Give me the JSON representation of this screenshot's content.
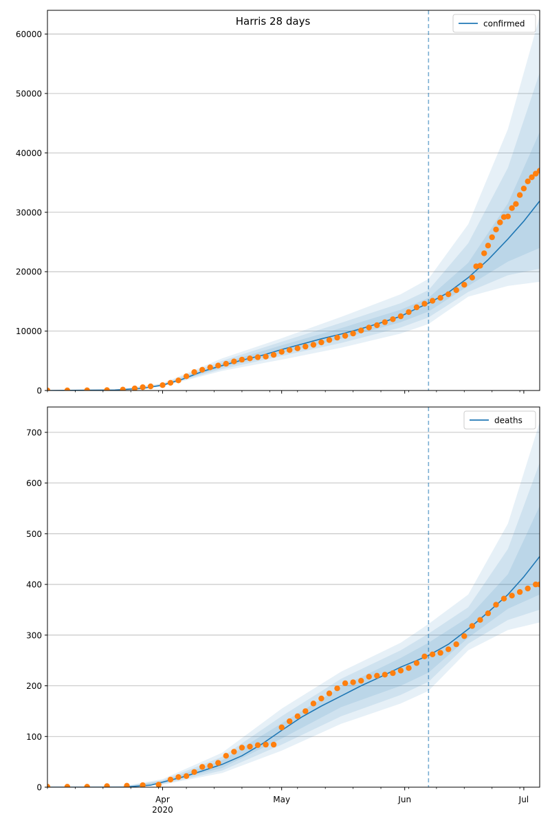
{
  "figure": {
    "title": "Harris 28 days"
  },
  "colors": {
    "model_line": "#1f77b4",
    "band_fill": "#1f77b4",
    "observed_points": "#ff7f0e",
    "cutoff_line": "#1f77b4",
    "grid": "#b0b0b0"
  },
  "chart_data": [
    {
      "type": "line",
      "title": "Harris 28 days",
      "xlabel": "",
      "ylabel": "",
      "x_axis": {
        "type": "date",
        "range": [
          "2020-03-03",
          "2020-07-05"
        ],
        "tick_labels": [
          "Apr\n2020",
          "May",
          "Jun",
          "Jul"
        ],
        "ticks": [
          "2020-04-01",
          "2020-05-01",
          "2020-06-01",
          "2020-07-01"
        ]
      },
      "ylim": [
        0,
        64000
      ],
      "yticks": [
        0,
        10000,
        20000,
        30000,
        40000,
        50000,
        60000
      ],
      "grid": "horizontal",
      "legend": {
        "placement": "top-right",
        "entries": [
          "confirmed"
        ]
      },
      "cutoff_date": "2020-06-07",
      "series": [
        {
          "name": "confirmed",
          "kind": "model_median",
          "x": [
            "2020-03-03",
            "2020-03-20",
            "2020-03-27",
            "2020-04-01",
            "2020-04-06",
            "2020-04-11",
            "2020-04-16",
            "2020-04-21",
            "2020-04-26",
            "2020-05-01",
            "2020-05-06",
            "2020-05-11",
            "2020-05-16",
            "2020-05-21",
            "2020-05-26",
            "2020-05-31",
            "2020-06-04",
            "2020-06-07",
            "2020-06-12",
            "2020-06-17",
            "2020-06-22",
            "2020-06-27",
            "2020-07-01",
            "2020-07-05"
          ],
          "y": [
            0,
            80,
            350,
            900,
            1900,
            3200,
            4200,
            5100,
            5900,
            6900,
            7800,
            8700,
            9500,
            10400,
            11400,
            12500,
            13800,
            14700,
            16500,
            19000,
            22000,
            25500,
            28500,
            31900
          ]
        },
        {
          "name": "confirmed",
          "kind": "observed",
          "x": [
            "2020-03-03",
            "2020-03-08",
            "2020-03-13",
            "2020-03-18",
            "2020-03-22",
            "2020-03-25",
            "2020-03-27",
            "2020-03-29",
            "2020-04-01",
            "2020-04-03",
            "2020-04-05",
            "2020-04-07",
            "2020-04-09",
            "2020-04-11",
            "2020-04-13",
            "2020-04-15",
            "2020-04-17",
            "2020-04-19",
            "2020-04-21",
            "2020-04-23",
            "2020-04-25",
            "2020-04-27",
            "2020-04-29",
            "2020-05-01",
            "2020-05-03",
            "2020-05-05",
            "2020-05-07",
            "2020-05-09",
            "2020-05-11",
            "2020-05-13",
            "2020-05-15",
            "2020-05-17",
            "2020-05-19",
            "2020-05-21",
            "2020-05-23",
            "2020-05-25",
            "2020-05-27",
            "2020-05-29",
            "2020-05-31",
            "2020-06-02",
            "2020-06-04",
            "2020-06-06",
            "2020-06-08",
            "2020-06-10",
            "2020-06-12",
            "2020-06-14",
            "2020-06-16",
            "2020-06-18",
            "2020-06-19",
            "2020-06-20",
            "2020-06-21",
            "2020-06-22",
            "2020-06-23",
            "2020-06-24",
            "2020-06-25",
            "2020-06-26",
            "2020-06-27",
            "2020-06-28",
            "2020-06-29",
            "2020-06-30",
            "2020-07-01",
            "2020-07-02",
            "2020-07-03",
            "2020-07-04",
            "2020-07-05"
          ],
          "y": [
            10,
            20,
            30,
            60,
            150,
            350,
            550,
            700,
            900,
            1300,
            1700,
            2400,
            3100,
            3500,
            3900,
            4200,
            4500,
            4900,
            5200,
            5400,
            5600,
            5700,
            6000,
            6500,
            6800,
            7100,
            7400,
            7700,
            8100,
            8500,
            8900,
            9200,
            9600,
            10100,
            10600,
            11000,
            11500,
            12000,
            12500,
            13200,
            14000,
            14600,
            15100,
            15600,
            16200,
            16900,
            17800,
            19000,
            20900,
            21000,
            23100,
            24400,
            25800,
            27100,
            28300,
            29200,
            29300,
            30700,
            31400,
            32900,
            34000,
            35200,
            35900,
            36500,
            37000
          ]
        }
      ],
      "bands": [
        {
          "x": [
            "2020-03-03",
            "2020-03-20",
            "2020-04-01",
            "2020-04-16",
            "2020-05-01",
            "2020-05-16",
            "2020-05-31",
            "2020-06-07",
            "2020-06-17",
            "2020-06-27",
            "2020-07-05"
          ],
          "lower": [
            0,
            60,
            700,
            3300,
            5200,
            7200,
            9600,
            11200,
            15800,
            17600,
            18300
          ],
          "upper": [
            0,
            110,
            1200,
            5400,
            8800,
            12400,
            16200,
            18800,
            28000,
            44000,
            63000
          ]
        },
        {
          "x": [
            "2020-03-03",
            "2020-03-20",
            "2020-04-01",
            "2020-04-16",
            "2020-05-01",
            "2020-05-16",
            "2020-05-31",
            "2020-06-07",
            "2020-06-17",
            "2020-06-27",
            "2020-07-05"
          ],
          "lower": [
            0,
            65,
            760,
            3600,
            5800,
            8000,
            10600,
            12300,
            16600,
            19400,
            20500
          ],
          "upper": [
            0,
            100,
            1100,
            5000,
            8200,
            11400,
            14700,
            16900,
            24800,
            37500,
            53500
          ]
        },
        {
          "x": [
            "2020-03-03",
            "2020-03-20",
            "2020-04-01",
            "2020-04-16",
            "2020-05-01",
            "2020-05-16",
            "2020-05-31",
            "2020-06-07",
            "2020-06-17",
            "2020-06-27",
            "2020-07-05"
          ],
          "lower": [
            0,
            70,
            820,
            3900,
            6300,
            8700,
            11500,
            13300,
            17600,
            21700,
            24000
          ],
          "upper": [
            0,
            92,
            1000,
            4600,
            7600,
            10500,
            13600,
            15600,
            21500,
            31500,
            43500
          ]
        }
      ]
    },
    {
      "type": "line",
      "title": "",
      "xlabel": "",
      "ylabel": "",
      "x_axis": {
        "type": "date",
        "range": [
          "2020-03-03",
          "2020-07-05"
        ],
        "tick_labels": [
          "Apr\n2020",
          "May",
          "Jun",
          "Jul"
        ],
        "ticks": [
          "2020-04-01",
          "2020-05-01",
          "2020-06-01",
          "2020-07-01"
        ]
      },
      "ylim": [
        0,
        750
      ],
      "yticks": [
        0,
        100,
        200,
        300,
        400,
        500,
        600,
        700
      ],
      "grid": "horizontal",
      "legend": {
        "placement": "top-right",
        "entries": [
          "deaths"
        ]
      },
      "cutoff_date": "2020-06-07",
      "series": [
        {
          "name": "deaths",
          "kind": "model_median",
          "x": [
            "2020-03-03",
            "2020-03-22",
            "2020-03-29",
            "2020-04-01",
            "2020-04-06",
            "2020-04-11",
            "2020-04-16",
            "2020-04-21",
            "2020-04-26",
            "2020-05-01",
            "2020-05-06",
            "2020-05-11",
            "2020-05-16",
            "2020-05-21",
            "2020-05-26",
            "2020-05-31",
            "2020-06-04",
            "2020-06-07",
            "2020-06-12",
            "2020-06-17",
            "2020-06-22",
            "2020-06-27",
            "2020-07-01",
            "2020-07-05"
          ],
          "y": [
            0,
            0,
            4,
            10,
            20,
            32,
            45,
            62,
            85,
            112,
            138,
            160,
            180,
            200,
            218,
            237,
            250,
            260,
            282,
            312,
            345,
            380,
            415,
            455
          ]
        },
        {
          "name": "deaths",
          "kind": "observed",
          "x": [
            "2020-03-03",
            "2020-03-08",
            "2020-03-13",
            "2020-03-18",
            "2020-03-23",
            "2020-03-27",
            "2020-03-31",
            "2020-04-03",
            "2020-04-05",
            "2020-04-07",
            "2020-04-09",
            "2020-04-11",
            "2020-04-13",
            "2020-04-15",
            "2020-04-17",
            "2020-04-19",
            "2020-04-21",
            "2020-04-23",
            "2020-04-25",
            "2020-04-27",
            "2020-04-29",
            "2020-05-01",
            "2020-05-03",
            "2020-05-05",
            "2020-05-07",
            "2020-05-09",
            "2020-05-11",
            "2020-05-13",
            "2020-05-15",
            "2020-05-17",
            "2020-05-19",
            "2020-05-21",
            "2020-05-23",
            "2020-05-25",
            "2020-05-27",
            "2020-05-29",
            "2020-05-31",
            "2020-06-02",
            "2020-06-04",
            "2020-06-06",
            "2020-06-08",
            "2020-06-10",
            "2020-06-12",
            "2020-06-14",
            "2020-06-16",
            "2020-06-18",
            "2020-06-20",
            "2020-06-22",
            "2020-06-24",
            "2020-06-26",
            "2020-06-28",
            "2020-06-30",
            "2020-07-02",
            "2020-07-04",
            "2020-07-05"
          ],
          "y": [
            1,
            1,
            1,
            2,
            3,
            4,
            5,
            15,
            20,
            22,
            30,
            40,
            42,
            48,
            62,
            70,
            78,
            80,
            83,
            84,
            84,
            118,
            130,
            140,
            150,
            165,
            175,
            185,
            195,
            205,
            207,
            210,
            218,
            220,
            222,
            225,
            230,
            235,
            245,
            258,
            262,
            265,
            272,
            282,
            298,
            318,
            330,
            343,
            360,
            372,
            378,
            385,
            392,
            400,
            400
          ]
        }
      ],
      "bands": [
        {
          "x": [
            "2020-03-03",
            "2020-03-22",
            "2020-04-01",
            "2020-04-16",
            "2020-05-01",
            "2020-05-16",
            "2020-05-31",
            "2020-06-07",
            "2020-06-17",
            "2020-06-27",
            "2020-07-05"
          ],
          "lower": [
            0,
            0,
            5,
            28,
            72,
            125,
            165,
            190,
            270,
            310,
            325
          ],
          "upper": [
            0,
            2,
            16,
            68,
            155,
            228,
            285,
            322,
            380,
            520,
            720
          ]
        },
        {
          "x": [
            "2020-03-03",
            "2020-03-22",
            "2020-04-01",
            "2020-04-16",
            "2020-05-01",
            "2020-05-16",
            "2020-05-31",
            "2020-06-07",
            "2020-06-17",
            "2020-06-27",
            "2020-07-05"
          ],
          "lower": [
            0,
            0,
            6,
            33,
            84,
            140,
            182,
            208,
            283,
            330,
            350
          ],
          "upper": [
            0,
            1,
            14,
            60,
            140,
            214,
            270,
            303,
            355,
            470,
            640
          ]
        },
        {
          "x": [
            "2020-03-03",
            "2020-03-22",
            "2020-04-01",
            "2020-04-16",
            "2020-05-01",
            "2020-05-16",
            "2020-05-31",
            "2020-06-07",
            "2020-06-17",
            "2020-06-27",
            "2020-07-05"
          ],
          "lower": [
            0,
            0,
            8,
            38,
            96,
            158,
            200,
            226,
            295,
            352,
            380
          ],
          "upper": [
            0,
            1,
            12,
            53,
            126,
            198,
            255,
            285,
            335,
            420,
            555
          ]
        }
      ]
    }
  ]
}
